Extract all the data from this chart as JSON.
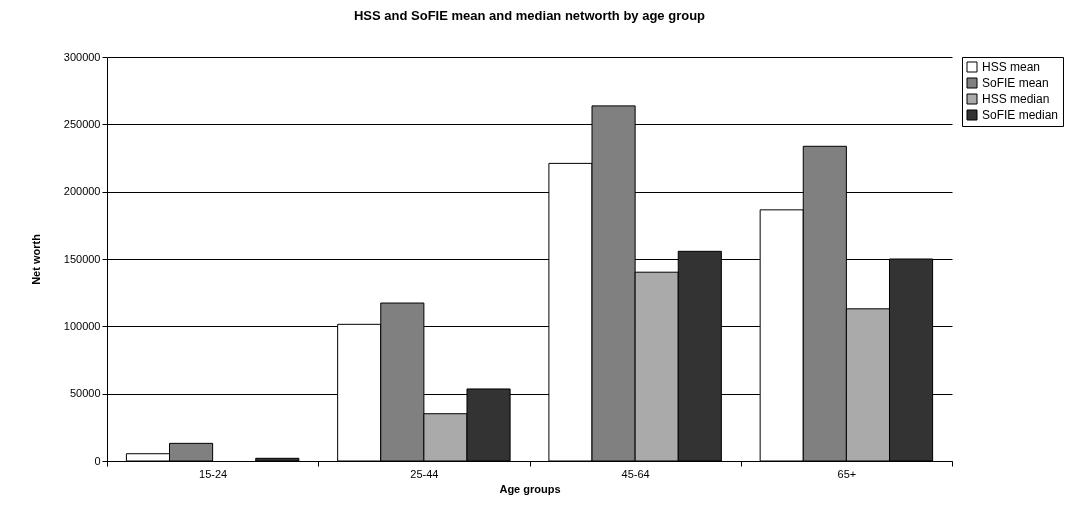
{
  "chart_data": {
    "type": "bar",
    "title": "HSS and SoFIE mean and median networth by age group",
    "xlabel": "Age groups",
    "ylabel": "Net worth",
    "categories": [
      "15-24",
      "25-44",
      "45-64",
      "65+"
    ],
    "series": [
      {
        "name": "HSS mean",
        "color": "#ffffff",
        "values": [
          5400,
          101500,
          221000,
          186500
        ]
      },
      {
        "name": "SoFIE mean",
        "color": "#808080",
        "values": [
          13100,
          117300,
          263700,
          233700
        ]
      },
      {
        "name": "HSS median",
        "color": "#aaaaaa",
        "values": [
          null,
          35100,
          140200,
          113000
        ]
      },
      {
        "name": "SoFIE median",
        "color": "#333333",
        "values": [
          2000,
          53500,
          155700,
          150000
        ]
      }
    ],
    "ylim": [
      0,
      300000
    ],
    "yticks": [
      0,
      50000,
      100000,
      150000,
      200000,
      250000,
      300000
    ],
    "grid": "y",
    "legend": "right"
  }
}
